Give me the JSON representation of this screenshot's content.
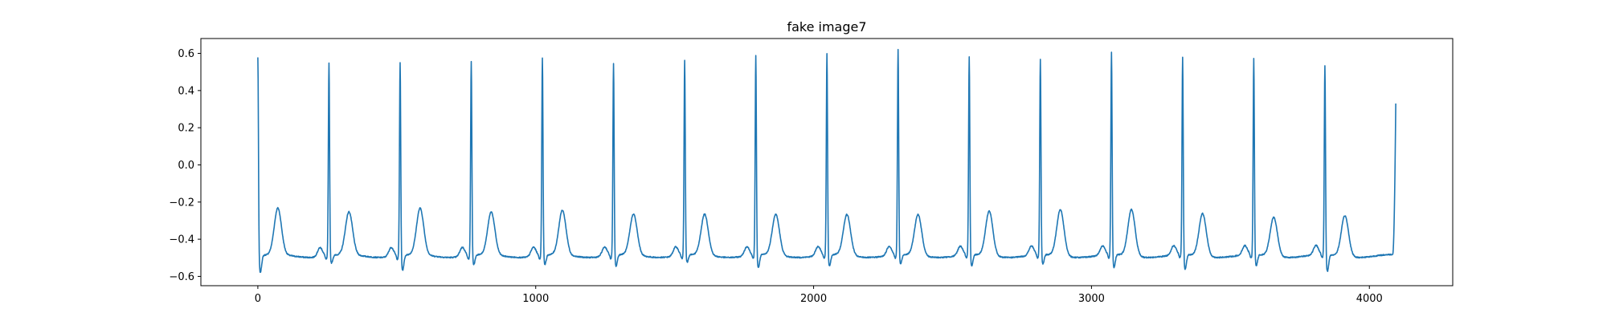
{
  "chart_data": {
    "type": "line",
    "title": "fake image7",
    "xlabel": "",
    "ylabel": "",
    "xlim": [
      -205,
      4300
    ],
    "ylim": [
      -0.65,
      0.68
    ],
    "x_ticks": [
      0,
      1000,
      2000,
      3000,
      4000
    ],
    "x_tick_labels": [
      "0",
      "1000",
      "2000",
      "3000",
      "4000"
    ],
    "y_ticks": [
      -0.6,
      -0.4,
      -0.2,
      0.0,
      0.2,
      0.4,
      0.6
    ],
    "y_tick_labels": [
      "−0.6",
      "−0.4",
      "−0.2",
      "0.0",
      "0.2",
      "0.4",
      "0.6"
    ],
    "grid": false,
    "line_color": "#1f77b4",
    "series": [
      {
        "n_samples": 4096,
        "baseline": -0.49,
        "r_peak_x": [
          0,
          256,
          512,
          768,
          1024,
          1280,
          1536,
          1792,
          2048,
          2304,
          2560,
          2816,
          3072,
          3328,
          3584,
          3840
        ],
        "r_peak_y": [
          0.59,
          0.55,
          0.56,
          0.56,
          0.58,
          0.55,
          0.56,
          0.59,
          0.6,
          0.62,
          0.58,
          0.57,
          0.61,
          0.58,
          0.57,
          0.54
        ],
        "s_trough_y": [
          -0.58,
          -0.53,
          -0.57,
          -0.54,
          -0.54,
          -0.55,
          -0.53,
          -0.56,
          -0.55,
          -0.54,
          -0.55,
          -0.54,
          -0.56,
          -0.57,
          -0.55,
          -0.58
        ],
        "t_wave_x": [
          72,
          328,
          584,
          840,
          1096,
          1352,
          1608,
          1864,
          2120,
          2376,
          2632,
          2888,
          3144,
          3400,
          3656,
          3912
        ],
        "t_wave_y": [
          -0.24,
          -0.26,
          -0.24,
          -0.26,
          -0.25,
          -0.27,
          -0.27,
          -0.27,
          -0.27,
          -0.27,
          -0.25,
          -0.24,
          -0.24,
          -0.26,
          -0.28,
          -0.27
        ],
        "end_x": 4095,
        "end_y": 0.33
      }
    ]
  }
}
